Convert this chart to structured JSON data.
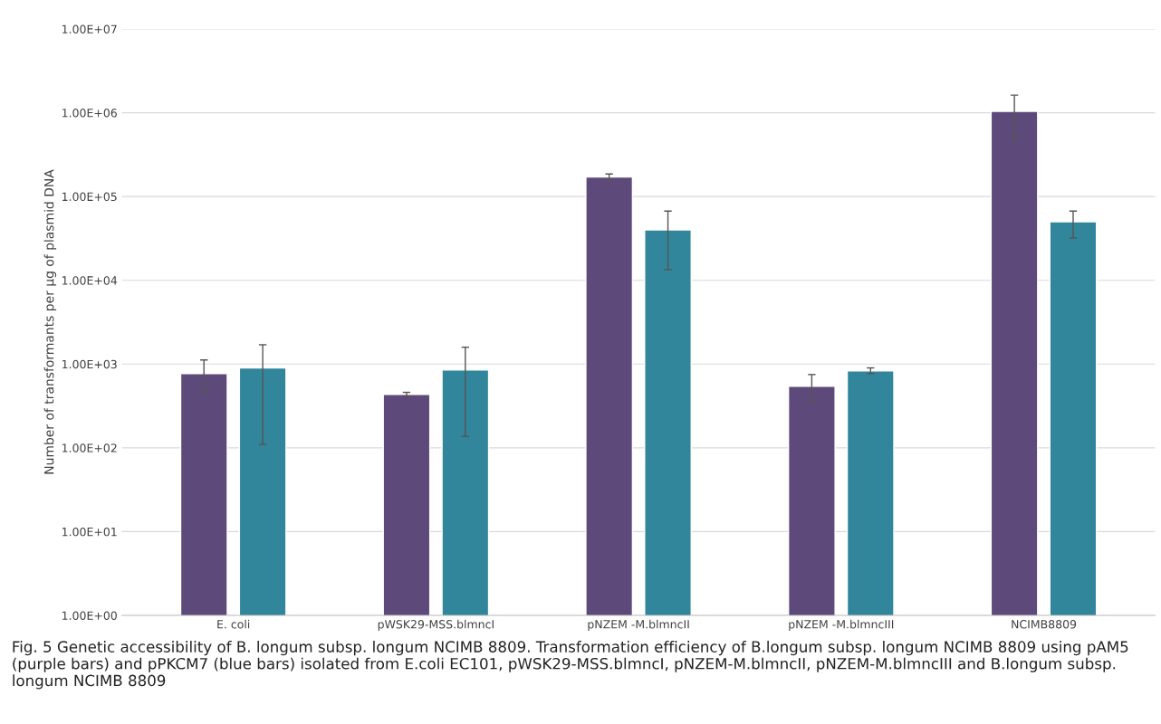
{
  "chart_data": {
    "type": "bar",
    "categories": [
      "E. coli",
      "pWSK29-MSS.blmncI",
      "pNZEM -M.blmncII",
      "pNZEM -M.blmncIII",
      "NCIMB8809"
    ],
    "series": [
      {
        "color": "#5e4a7a",
        "values": [
          770,
          435,
          171000,
          545,
          1040000
        ],
        "errors": [
          [
            460,
            1120
          ],
          [
            410,
            460
          ],
          [
            157000,
            186000
          ],
          [
            355,
            750
          ],
          [
            480000,
            1620000
          ]
        ]
      },
      {
        "color": "#31869b",
        "values": [
          900,
          850,
          40000,
          830,
          50000
        ],
        "errors": [
          [
            110,
            1700
          ],
          [
            137,
            1590
          ],
          [
            13400,
            67000
          ],
          [
            770,
            900
          ],
          [
            32000,
            67000
          ]
        ]
      }
    ],
    "ylabel": "Number of transformants per μg of plasmid DNA",
    "log": true,
    "ylim": [
      1,
      10000000
    ],
    "yticks": [
      {
        "value": 1,
        "label": "1.00E+00"
      },
      {
        "value": 10,
        "label": "1.00E+01"
      },
      {
        "value": 100,
        "label": "1.00E+02"
      },
      {
        "value": 1000,
        "label": "1.00E+03"
      },
      {
        "value": 10000,
        "label": "1.00E+04"
      },
      {
        "value": 100000,
        "label": "1.00E+05"
      },
      {
        "value": 1000000,
        "label": "1.00E+06"
      },
      {
        "value": 10000000,
        "label": "1.00E+07"
      }
    ],
    "grid": "y",
    "annotations": [
      "Fig. 5 Genetic accessibility of B. longum subsp. longum NCIMB 8809. Transformation efficiency of B.longum subsp. longum NCIMB 8809 using pAM5 (purple bars) and pPKCM7 (blue bars) isolated from E.coli EC101, pWSK29-MSS.blmncI, pNZEM-M.blmncII, pNZEM-M.blmncIII and B.longum subsp. longum NCIMB 8809"
    ]
  }
}
